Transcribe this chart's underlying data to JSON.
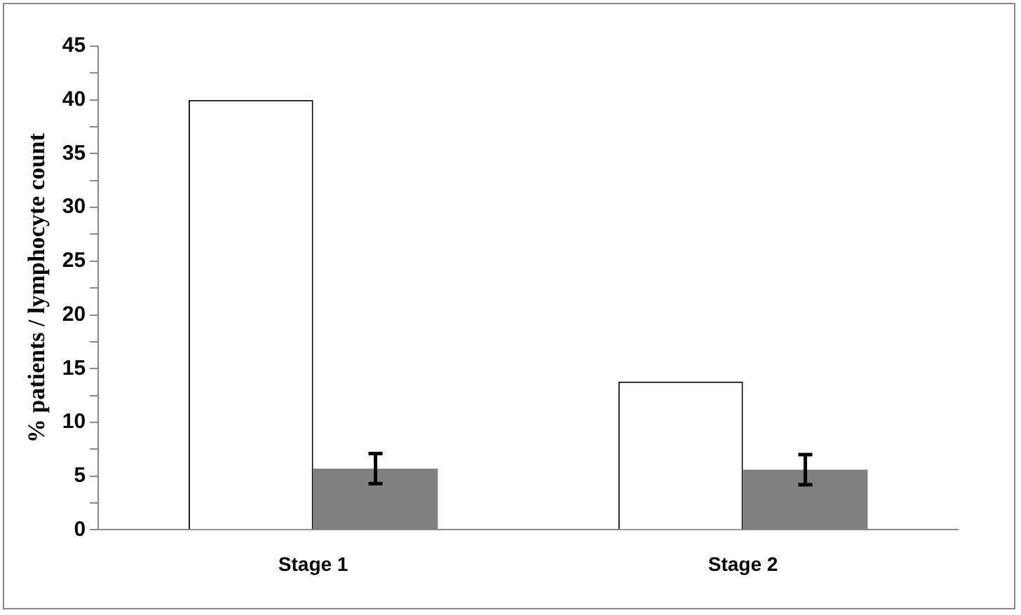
{
  "chart_data": {
    "type": "bar",
    "ylabel": "% patients / lymphocyte count",
    "categories": [
      "Stage 1",
      "Stage 2"
    ],
    "series": [
      {
        "color": "#ffffff",
        "values": [
          40,
          13.8
        ]
      },
      {
        "color": "#808080",
        "values": [
          5.7,
          5.6
        ],
        "errors": [
          1.4,
          1.4
        ]
      }
    ],
    "ylim": [
      0,
      45
    ],
    "yticks": [
      0,
      {
        "value": 2.5,
        "label": null
      },
      5,
      {
        "value": 7.5,
        "label": null
      },
      10,
      {
        "value": 12.5,
        "label": null
      },
      15,
      {
        "value": 17.5,
        "label": null
      },
      20,
      {
        "value": 22.5,
        "label": null
      },
      25,
      {
        "value": 27.5,
        "label": null
      },
      30,
      {
        "value": 32.5,
        "label": null
      },
      35,
      {
        "value": 37.5,
        "label": null
      },
      40,
      {
        "value": 42.5,
        "label": null
      },
      45
    ],
    "grid": false,
    "legend": false
  }
}
